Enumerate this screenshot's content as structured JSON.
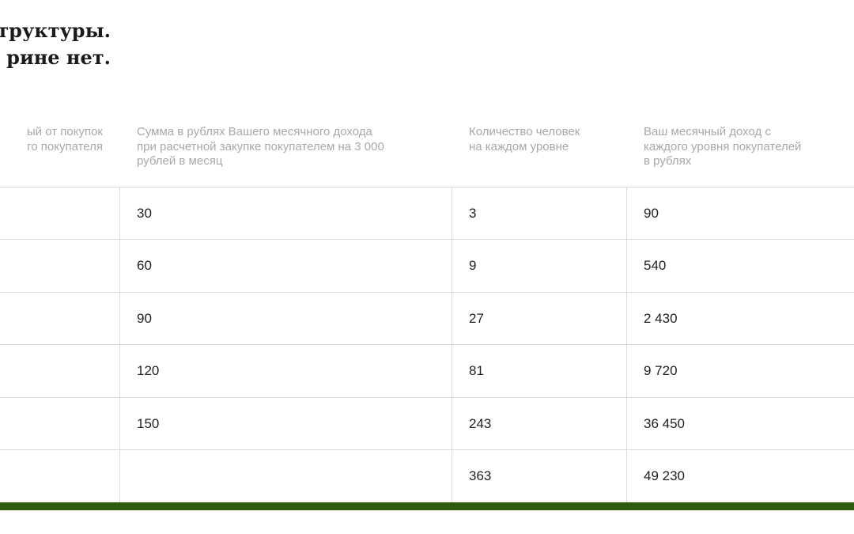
{
  "heading": {
    "line1": "труктуры.",
    "line2": "рине нет."
  },
  "table": {
    "headers": {
      "col2": "ый от покупок\nго покупателя",
      "col3": "Сумма в рублях Вашего месячного дохода\nпри расчетной закупке покупателем на 3 000\nрублей в месяц",
      "col4": "Количество человек\nна каждом уровне",
      "col5": "Ваш месячный доход с\nкаждого уровня покупателей\nв рублях"
    },
    "rows": [
      {
        "col3": "30",
        "col4": "3",
        "col5": "90"
      },
      {
        "col3": "60",
        "col4": "9",
        "col5": "540"
      },
      {
        "col3": "90",
        "col4": "27",
        "col5": "2 430"
      },
      {
        "col3": "120",
        "col4": "81",
        "col5": "9 720"
      },
      {
        "col3": "150",
        "col4": "243",
        "col5": "36 450"
      },
      {
        "col3": "",
        "col4": "363",
        "col5": "49 230"
      }
    ]
  },
  "colors": {
    "accent_bar": "#2e5a0b",
    "grid_line": "#dcdcdc",
    "header_text": "#a8a8a8"
  }
}
